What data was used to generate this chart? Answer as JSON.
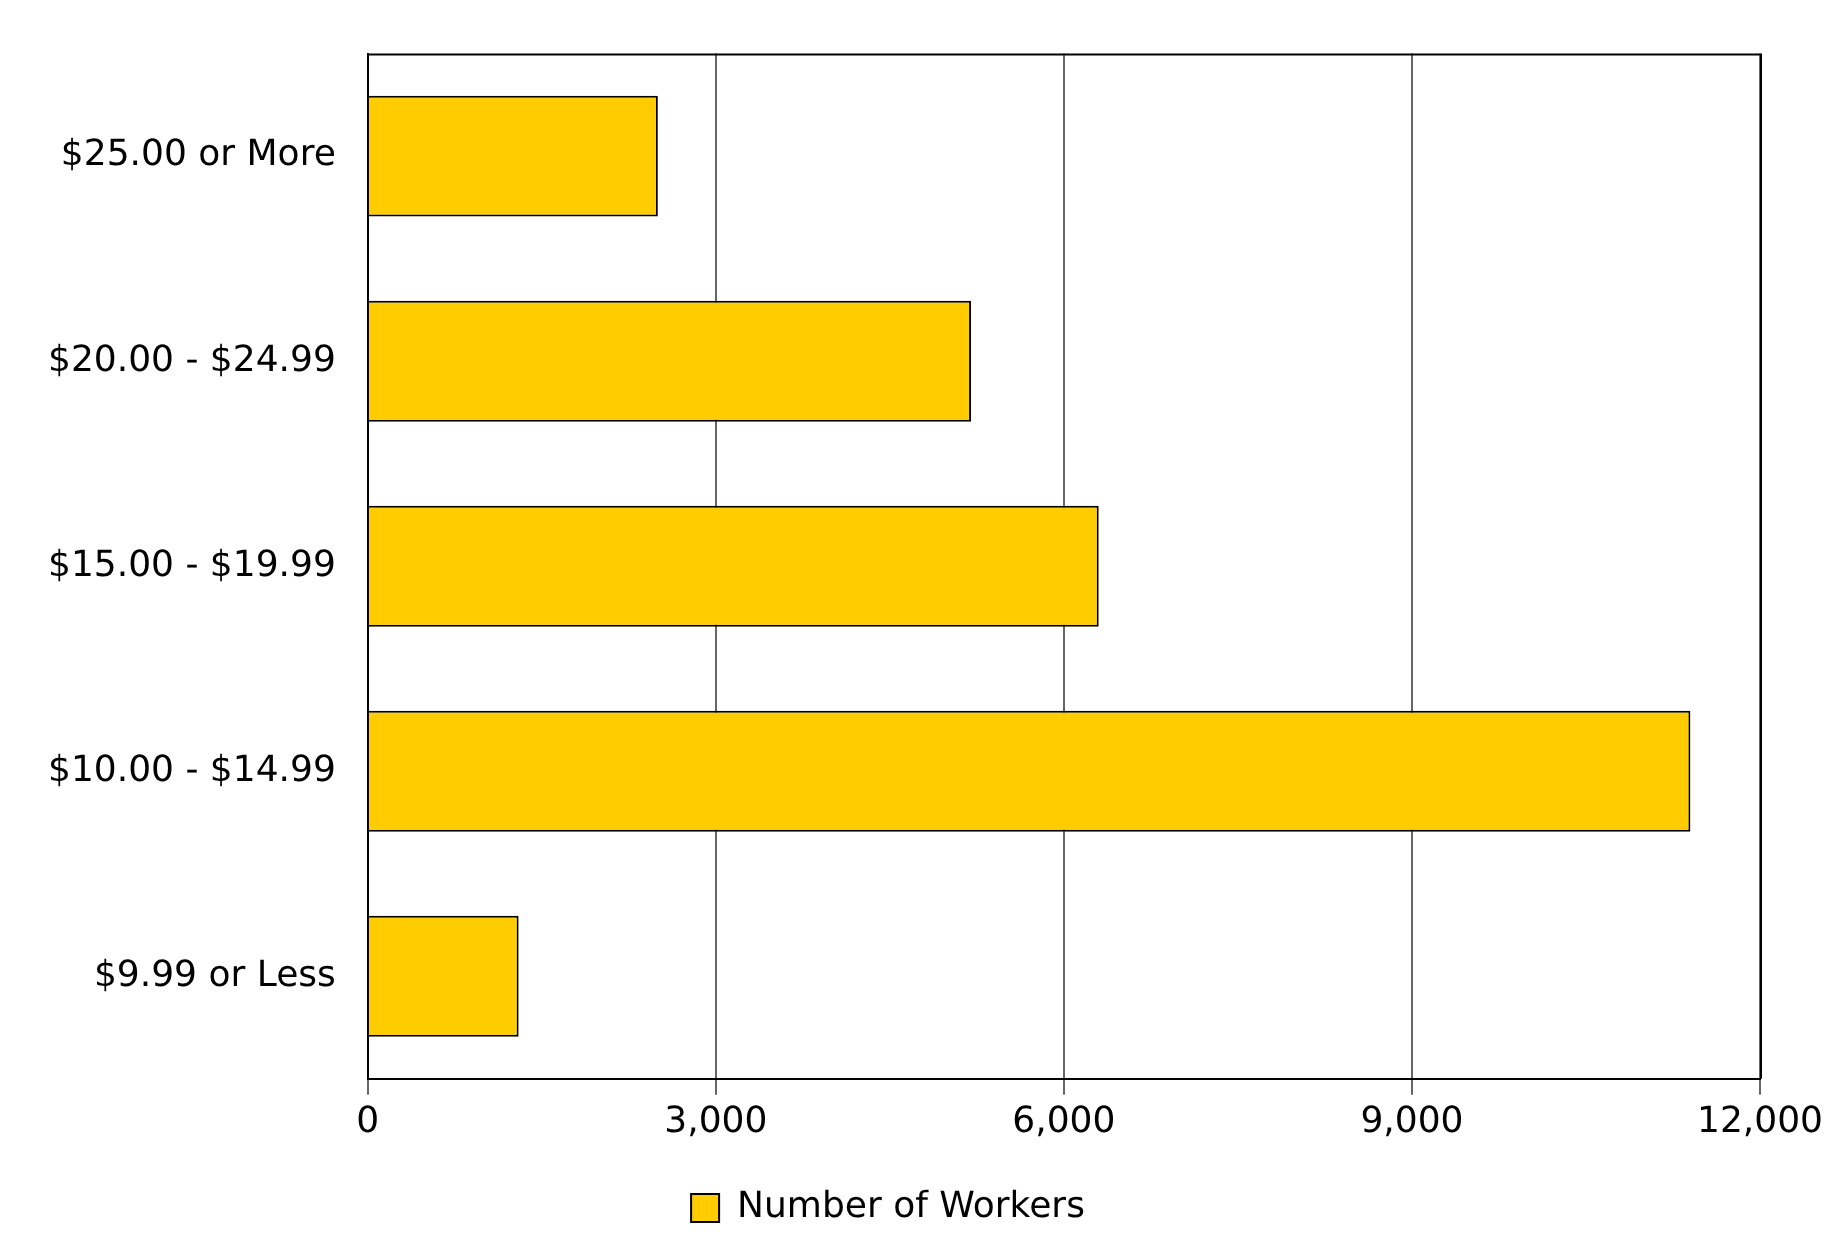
{
  "chart_data": {
    "type": "bar",
    "orientation": "horizontal",
    "categories": [
      "$25.00 or More",
      "$20.00 - $24.99",
      "$15.00 - $19.99",
      "$10.00 - $14.99",
      "$9.99 or Less"
    ],
    "series": [
      {
        "name": "Number of Workers",
        "color": "#ffcc00",
        "values": [
          2500,
          5200,
          6300,
          11400,
          1300
        ]
      }
    ],
    "xlim": [
      0,
      12000
    ],
    "xticks": [
      0,
      {
        "value": 3000,
        "label": "3,000"
      },
      {
        "value": 6000,
        "label": "6,000"
      },
      {
        "value": 9000,
        "label": "9,000"
      },
      {
        "value": 12000,
        "label": "12,000"
      }
    ],
    "grid": "x",
    "legend": "bottom"
  }
}
